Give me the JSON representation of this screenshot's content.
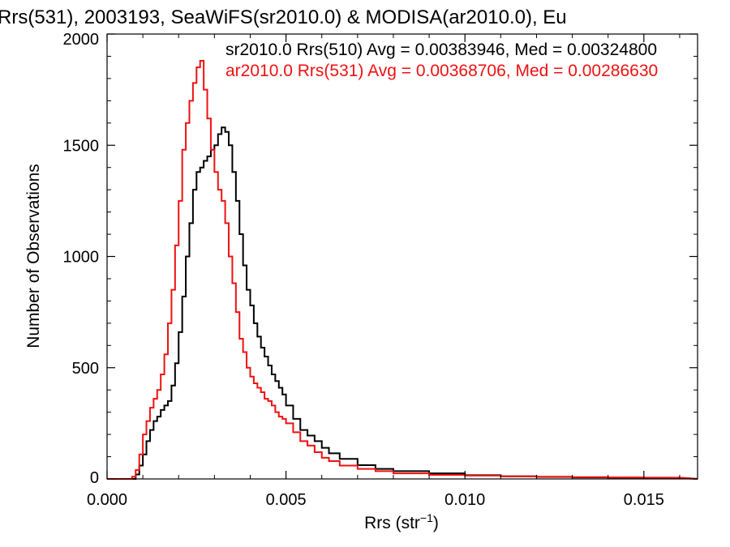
{
  "chart_data": {
    "type": "line",
    "step": true,
    "title": "Rrs(531), 2003193, SeaWiFS(sr2010.0) & MODISA(ar2010.0), Eu",
    "xlabel": "Rrs (str",
    "xlabel_sup": "−1",
    "xlabel_end": ")",
    "ylabel": "Number of Observations",
    "xlim": [
      0.0,
      0.0165
    ],
    "ylim": [
      0,
      2000
    ],
    "x_ticks": [
      0.0,
      0.005,
      0.01,
      0.015
    ],
    "x_tick_labels": [
      "0.000",
      "0.005",
      "0.010",
      "0.015"
    ],
    "y_ticks": [
      0,
      500,
      1000,
      1500,
      2000
    ],
    "y_tick_labels": [
      "0",
      "500",
      "1000",
      "1500",
      "2000"
    ],
    "grid": false,
    "legend_placement": "top-right",
    "series": [
      {
        "name": "sr2010.0 Rrs(510) Avg = 0.00383946, Med = 0.00324800",
        "color": "#000000",
        "x": [
          0.0008,
          0.0009,
          0.001,
          0.0011,
          0.0012,
          0.0013,
          0.0014,
          0.0015,
          0.0016,
          0.0017,
          0.0018,
          0.0019,
          0.002,
          0.0021,
          0.0022,
          0.0023,
          0.0024,
          0.0025,
          0.0026,
          0.0027,
          0.0028,
          0.0029,
          0.003,
          0.0031,
          0.0032,
          0.0033,
          0.0034,
          0.0035,
          0.0036,
          0.0037,
          0.0038,
          0.0039,
          0.004,
          0.0041,
          0.0042,
          0.0043,
          0.0044,
          0.0045,
          0.0046,
          0.0047,
          0.0048,
          0.0049,
          0.005,
          0.0052,
          0.0054,
          0.0056,
          0.0058,
          0.006,
          0.0062,
          0.0065,
          0.007,
          0.0075,
          0.008,
          0.009,
          0.01,
          0.011,
          0.012,
          0.013,
          0.014,
          0.015,
          0.016
        ],
        "y": [
          20,
          60,
          110,
          170,
          220,
          260,
          280,
          310,
          330,
          350,
          420,
          520,
          660,
          820,
          1000,
          1150,
          1300,
          1380,
          1400,
          1430,
          1450,
          1480,
          1500,
          1550,
          1580,
          1560,
          1500,
          1380,
          1250,
          1100,
          960,
          850,
          780,
          700,
          640,
          590,
          550,
          510,
          470,
          440,
          410,
          380,
          330,
          270,
          220,
          195,
          170,
          140,
          115,
          90,
          62,
          45,
          35,
          25,
          17,
          12,
          9,
          7,
          6,
          5,
          4
        ]
      },
      {
        "name": "ar2010.0 Rrs(531) Avg = 0.00368706, Med = 0.00286630",
        "color": "#ee1111",
        "x": [
          0.0007,
          0.0008,
          0.0009,
          0.001,
          0.0011,
          0.0012,
          0.0013,
          0.0014,
          0.0015,
          0.0016,
          0.0017,
          0.0018,
          0.0019,
          0.002,
          0.0021,
          0.0022,
          0.0023,
          0.0024,
          0.0025,
          0.0026,
          0.0027,
          0.0028,
          0.0029,
          0.003,
          0.0031,
          0.0032,
          0.0033,
          0.0034,
          0.0035,
          0.0036,
          0.0037,
          0.0038,
          0.0039,
          0.004,
          0.0041,
          0.0042,
          0.0043,
          0.0044,
          0.0045,
          0.0046,
          0.0047,
          0.0048,
          0.0049,
          0.005,
          0.0052,
          0.0054,
          0.0056,
          0.0058,
          0.006,
          0.0062,
          0.0065,
          0.007,
          0.0075,
          0.008,
          0.009,
          0.01,
          0.011,
          0.012,
          0.013,
          0.014,
          0.015,
          0.016
        ],
        "y": [
          10,
          40,
          110,
          200,
          260,
          320,
          360,
          400,
          470,
          560,
          700,
          850,
          1050,
          1250,
          1480,
          1600,
          1700,
          1780,
          1850,
          1880,
          1750,
          1620,
          1480,
          1380,
          1300,
          1250,
          1150,
          1000,
          880,
          750,
          630,
          570,
          500,
          460,
          430,
          410,
          390,
          360,
          350,
          330,
          300,
          280,
          270,
          250,
          210,
          170,
          150,
          120,
          95,
          80,
          60,
          45,
          35,
          25,
          18,
          15,
          12,
          10,
          8,
          7,
          6,
          5
        ]
      }
    ]
  }
}
